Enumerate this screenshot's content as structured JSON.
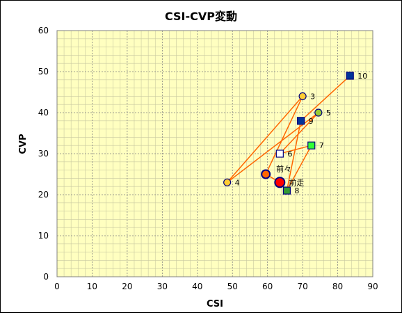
{
  "chart_data": {
    "type": "scatter",
    "title": "CSI-CVP変動",
    "xlabel": "CSI",
    "ylabel": "CVP",
    "xlim": [
      0,
      90
    ],
    "ylim": [
      0,
      60
    ],
    "x_ticks": [
      0,
      10,
      20,
      30,
      40,
      50,
      60,
      70,
      80,
      90
    ],
    "y_ticks": [
      0,
      10,
      20,
      30,
      40,
      50,
      60
    ],
    "grid": true,
    "minor_grid": true,
    "plot_background": "#ffffc0",
    "line_color": "#ff6600",
    "path_order": [
      "前走",
      "前々",
      "3",
      "4",
      "5",
      "6",
      "7",
      "8",
      "9",
      "10"
    ],
    "points": [
      {
        "label": "前走",
        "x": 63.5,
        "y": 23,
        "marker": "circle-large",
        "fill": "#ff0000",
        "stroke": "#000080"
      },
      {
        "label": "前々",
        "x": 59.5,
        "y": 25,
        "marker": "circle-medium",
        "fill": "#ff6600",
        "stroke": "#000080"
      },
      {
        "label": "3",
        "x": 70,
        "y": 44,
        "marker": "circle",
        "fill": "#ffcc33",
        "stroke": "#000080"
      },
      {
        "label": "4",
        "x": 48.5,
        "y": 23,
        "marker": "circle",
        "fill": "#ffcc33",
        "stroke": "#000080"
      },
      {
        "label": "5",
        "x": 74.5,
        "y": 40,
        "marker": "circle",
        "fill": "#99cc33",
        "stroke": "#000080"
      },
      {
        "label": "6",
        "x": 63.5,
        "y": 30,
        "marker": "square",
        "fill": "#ffffff",
        "stroke": "#000080"
      },
      {
        "label": "7",
        "x": 72.5,
        "y": 32,
        "marker": "square",
        "fill": "#33ff33",
        "stroke": "#000080"
      },
      {
        "label": "8",
        "x": 65.5,
        "y": 21,
        "marker": "square",
        "fill": "#339933",
        "stroke": "#000080"
      },
      {
        "label": "9",
        "x": 69.5,
        "y": 38,
        "marker": "square",
        "fill": "#003399",
        "stroke": "#000080"
      },
      {
        "label": "10",
        "x": 83.5,
        "y": 49,
        "marker": "square",
        "fill": "#003399",
        "stroke": "#000080"
      }
    ]
  }
}
